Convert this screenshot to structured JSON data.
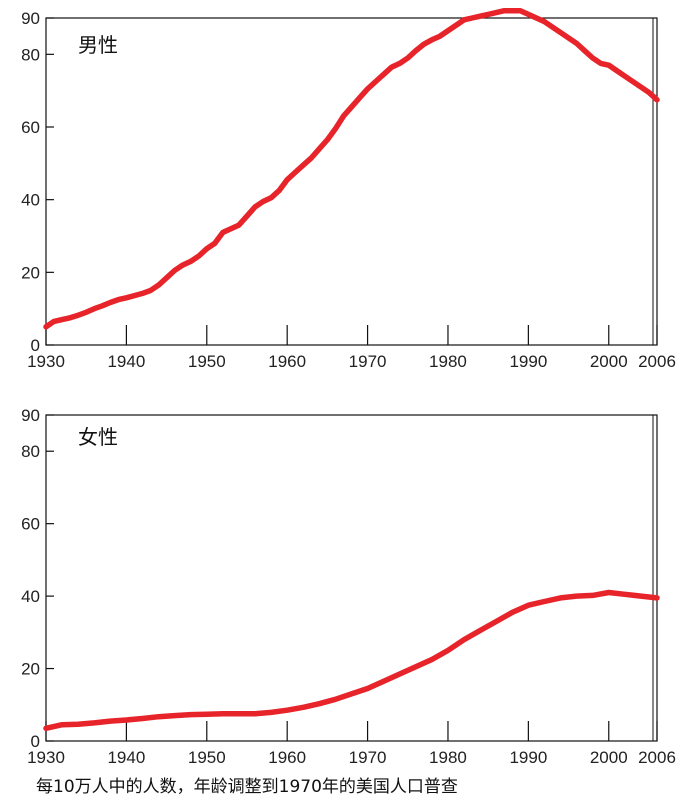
{
  "chart_data": [
    {
      "type": "line",
      "title": "男性",
      "xlabel": "",
      "ylabel": "",
      "xlim": [
        1930,
        2006
      ],
      "ylim": [
        0,
        90
      ],
      "x_ticks": [
        "1930",
        "1940",
        "1950",
        "1960",
        "1970",
        "1980",
        "1990",
        "2000",
        "2006"
      ],
      "y_ticks": [
        "0",
        "20",
        "40",
        "60",
        "80",
        "90"
      ],
      "grid": false,
      "series": [
        {
          "color": "#e8242b",
          "x": [
            1930,
            1931,
            1932,
            1933,
            1934,
            1935,
            1936,
            1937,
            1938,
            1939,
            1940,
            1941,
            1942,
            1943,
            1944,
            1945,
            1946,
            1947,
            1948,
            1949,
            1950,
            1951,
            1952,
            1953,
            1954,
            1955,
            1956,
            1957,
            1958,
            1959,
            1960,
            1961,
            1962,
            1963,
            1964,
            1965,
            1966,
            1967,
            1968,
            1969,
            1970,
            1971,
            1972,
            1973,
            1974,
            1975,
            1976,
            1977,
            1978,
            1979,
            1980,
            1981,
            1982,
            1983,
            1984,
            1985,
            1986,
            1987,
            1988,
            1989,
            1990,
            1991,
            1992,
            1993,
            1994,
            1995,
            1996,
            1997,
            1998,
            1999,
            2000,
            2001,
            2002,
            2003,
            2004,
            2005,
            2006
          ],
          "y": [
            5,
            6.5,
            7,
            7.5,
            8.2,
            9,
            10,
            10.8,
            11.7,
            12.5,
            13,
            13.6,
            14.2,
            15,
            16.5,
            18.5,
            20.5,
            22,
            23,
            24.5,
            26.5,
            28,
            31,
            32,
            33,
            35.5,
            38,
            39.5,
            40.5,
            42.5,
            45.5,
            47.5,
            49.5,
            51.5,
            54,
            56.5,
            59.5,
            63,
            65.5,
            68,
            70.5,
            72.5,
            74.5,
            76.5,
            77.5,
            79,
            81,
            82.8,
            84,
            85,
            86.5,
            88,
            89.5,
            90,
            90.5,
            91,
            91.5,
            92,
            92,
            92,
            91,
            90,
            89,
            87.5,
            86,
            84.5,
            83,
            81,
            79,
            77.5,
            77,
            75.5,
            74,
            72.5,
            71,
            69.5,
            67.5
          ]
        }
      ]
    },
    {
      "type": "line",
      "title": "女性",
      "xlabel": "",
      "ylabel": "",
      "xlim": [
        1930,
        2006
      ],
      "ylim": [
        0,
        90
      ],
      "x_ticks": [
        "1930",
        "1940",
        "1950",
        "1960",
        "1970",
        "1980",
        "1990",
        "2000",
        "2006"
      ],
      "y_ticks": [
        "0",
        "20",
        "40",
        "60",
        "80",
        "90"
      ],
      "grid": false,
      "series": [
        {
          "color": "#e8242b",
          "x": [
            1930,
            1932,
            1934,
            1936,
            1938,
            1940,
            1942,
            1944,
            1946,
            1948,
            1950,
            1952,
            1954,
            1956,
            1958,
            1960,
            1962,
            1964,
            1966,
            1968,
            1970,
            1972,
            1974,
            1976,
            1978,
            1980,
            1982,
            1984,
            1986,
            1988,
            1990,
            1992,
            1994,
            1996,
            1998,
            2000,
            2002,
            2004,
            2006
          ],
          "y": [
            3.5,
            4.5,
            4.6,
            5,
            5.5,
            5.8,
            6.2,
            6.7,
            7,
            7.3,
            7.4,
            7.5,
            7.5,
            7.5,
            7.9,
            8.5,
            9.3,
            10.3,
            11.5,
            13,
            14.5,
            16.5,
            18.5,
            20.5,
            22.5,
            25,
            28,
            30.5,
            33,
            35.5,
            37.5,
            38.5,
            39.5,
            40,
            40.2,
            41,
            40.5,
            40,
            39.5
          ]
        }
      ]
    }
  ],
  "footnote": "每10万人中的人数，年龄调整到1970年的美国人口普查"
}
